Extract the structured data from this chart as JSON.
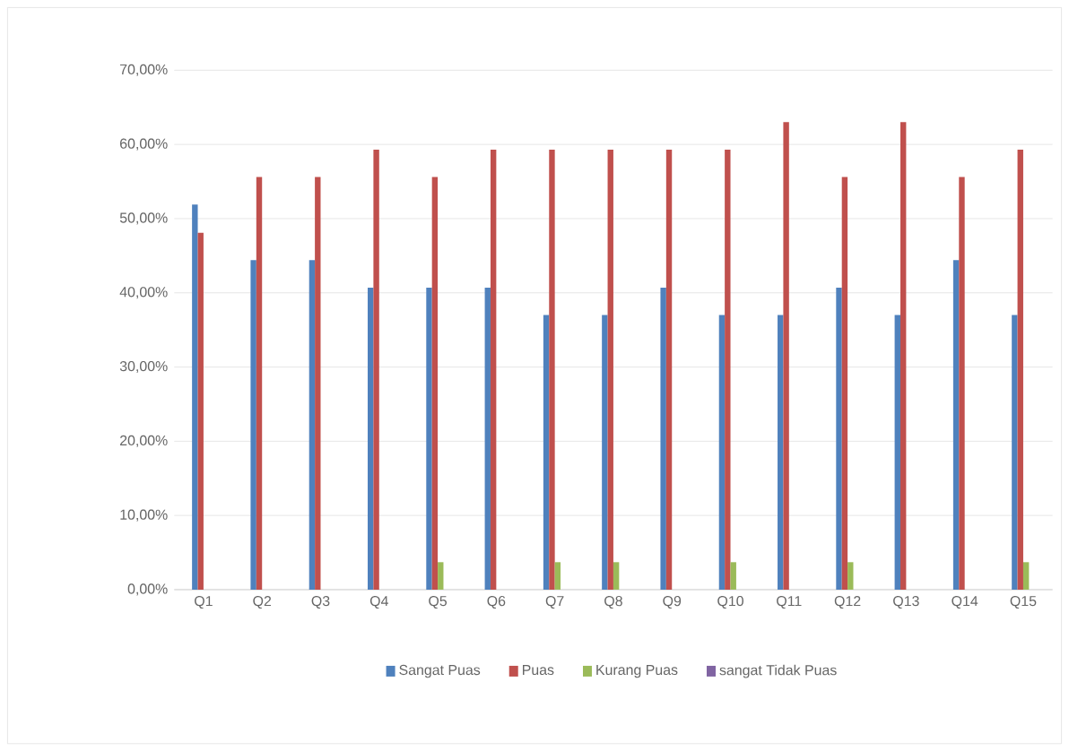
{
  "chart_data": {
    "type": "bar",
    "categories": [
      "Q1",
      "Q2",
      "Q3",
      "Q4",
      "Q5",
      "Q6",
      "Q7",
      "Q8",
      "Q9",
      "Q10",
      "Q11",
      "Q12",
      "Q13",
      "Q14",
      "Q15"
    ],
    "series": [
      {
        "name": "Sangat Puas",
        "color": "#4f81bd",
        "values": [
          51.9,
          44.4,
          44.4,
          40.7,
          40.7,
          40.7,
          37.0,
          37.0,
          40.7,
          37.0,
          37.0,
          40.7,
          37.0,
          44.4,
          37.0
        ]
      },
      {
        "name": "Puas",
        "color": "#c0504d",
        "values": [
          48.1,
          55.6,
          55.6,
          59.3,
          55.6,
          59.3,
          59.3,
          59.3,
          59.3,
          59.3,
          63.0,
          55.6,
          63.0,
          55.6,
          59.3
        ]
      },
      {
        "name": "Kurang Puas",
        "color": "#9bbb59",
        "values": [
          0,
          0,
          0,
          0,
          3.7,
          0,
          3.7,
          3.7,
          0,
          3.7,
          0,
          3.7,
          0,
          0,
          3.7
        ]
      },
      {
        "name": "sangat Tidak Puas",
        "color": "#8064a2",
        "values": [
          0,
          0,
          0,
          0,
          0,
          0,
          0,
          0,
          0,
          0,
          0,
          0,
          0,
          0,
          0
        ]
      }
    ],
    "ylim": [
      0,
      70
    ],
    "yticks": [
      {
        "value": 0,
        "label": "0,00%"
      },
      {
        "value": 10,
        "label": "10,00%"
      },
      {
        "value": 20,
        "label": "20,00%"
      },
      {
        "value": 30,
        "label": "30,00%"
      },
      {
        "value": 40,
        "label": "40,00%"
      },
      {
        "value": 50,
        "label": "50,00%"
      },
      {
        "value": 60,
        "label": "60,00%"
      },
      {
        "value": 70,
        "label": "70,00%"
      }
    ],
    "grid": "y",
    "legend": "bottom"
  }
}
